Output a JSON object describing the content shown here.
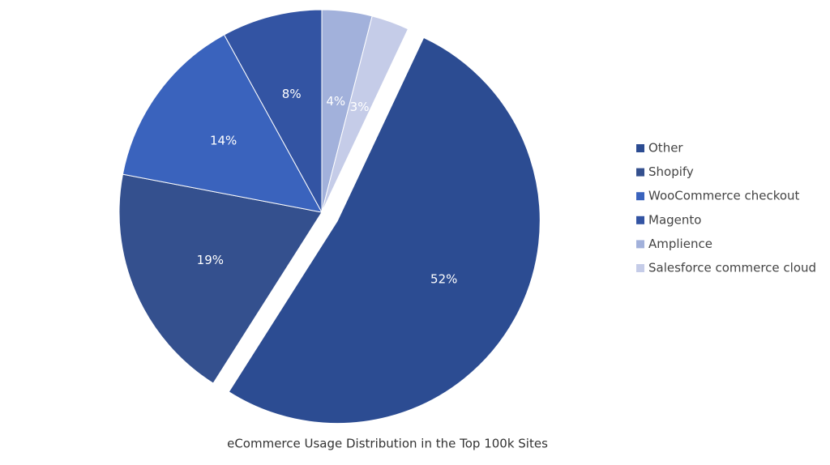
{
  "chart_data": {
    "type": "pie",
    "title": "eCommerce Usage Distribution in the Top 100k Sites",
    "categories": [
      "Other",
      "Shopify",
      "WooCommerce checkout",
      "Magento",
      "Amplience",
      "Salesforce commerce cloud"
    ],
    "values": [
      52,
      19,
      14,
      8,
      4,
      3
    ],
    "value_labels": [
      "52%",
      "19%",
      "14%",
      "8%",
      "4%",
      "3%"
    ],
    "colors": [
      "#2c4c92",
      "#34508e",
      "#3a63bd",
      "#3354a3",
      "#a2b1db",
      "#c5cce8"
    ],
    "legend": "right"
  }
}
